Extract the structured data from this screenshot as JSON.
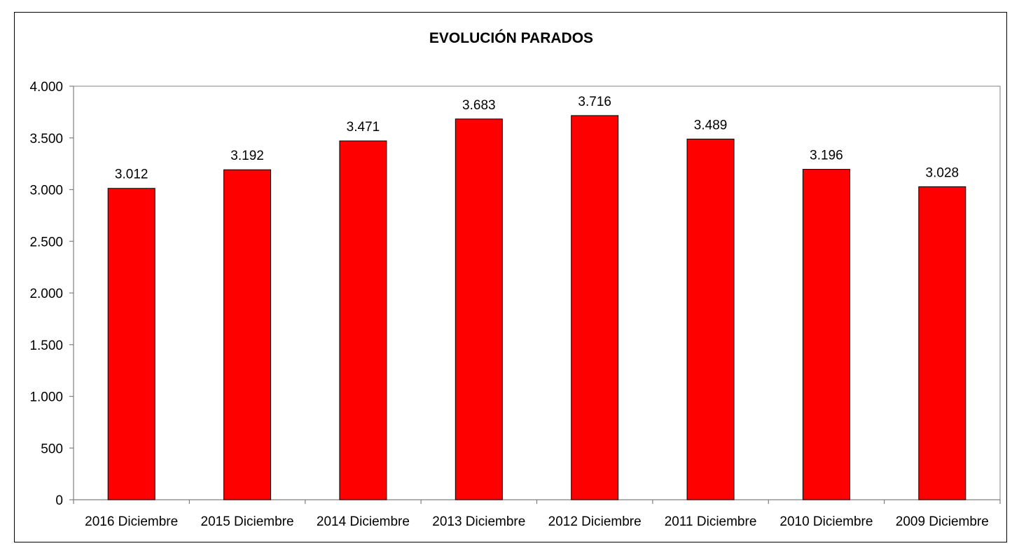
{
  "chart_data": {
    "type": "bar",
    "title": "EVOLUCIÓN PARADOS",
    "xlabel": "",
    "ylabel": "",
    "categories": [
      "2016 Diciembre",
      "2015 Diciembre",
      "2014 Diciembre",
      "2013 Diciembre",
      "2012 Diciembre",
      "2011 Diciembre",
      "2010 Diciembre",
      "2009 Diciembre"
    ],
    "values": [
      3012,
      3192,
      3471,
      3683,
      3716,
      3489,
      3196,
      3028
    ],
    "data_labels": [
      "3.012",
      "3.192",
      "3.471",
      "3.683",
      "3.716",
      "3.489",
      "3.196",
      "3.028"
    ],
    "ylim": [
      0,
      4000
    ],
    "yticks": [
      0,
      500,
      1000,
      1500,
      2000,
      2500,
      3000,
      3500,
      4000
    ],
    "ytick_labels": [
      "0",
      "500",
      "1.000",
      "1.500",
      "2.000",
      "2.500",
      "3.000",
      "3.500",
      "4.000"
    ],
    "grid": false,
    "legend": "none",
    "colors": {
      "bar_fill": "#ff0000",
      "bar_stroke": "#000000",
      "axis": "#808080",
      "plot_border": "#808080",
      "frame": "#000000"
    }
  }
}
